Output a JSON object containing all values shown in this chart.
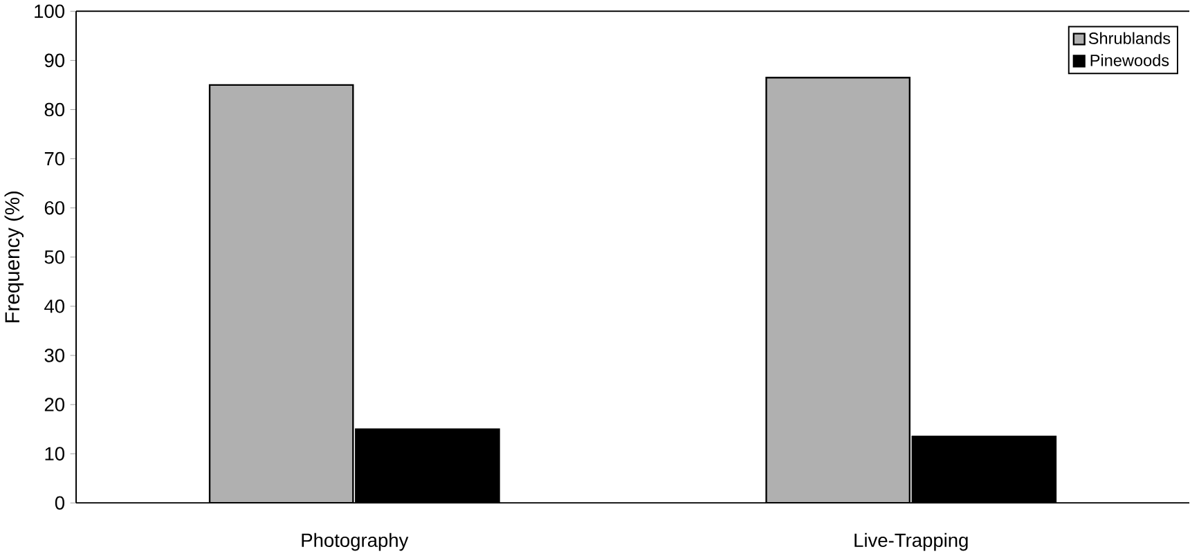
{
  "chart_data": {
    "type": "bar",
    "ylabel": "Frequency (%)",
    "categories": [
      "Photography",
      "Live-Trapping"
    ],
    "series": [
      {
        "name": "Shrublands",
        "color": "#b0b0b0",
        "values": [
          85,
          86.5
        ]
      },
      {
        "name": "Pinewoods",
        "color": "#000000",
        "values": [
          15,
          13.5
        ]
      }
    ],
    "ylim": [
      0,
      100
    ],
    "yticks": [
      0,
      10,
      20,
      30,
      40,
      50,
      60,
      70,
      80,
      90,
      100
    ],
    "legend": "top right",
    "grid": false
  }
}
